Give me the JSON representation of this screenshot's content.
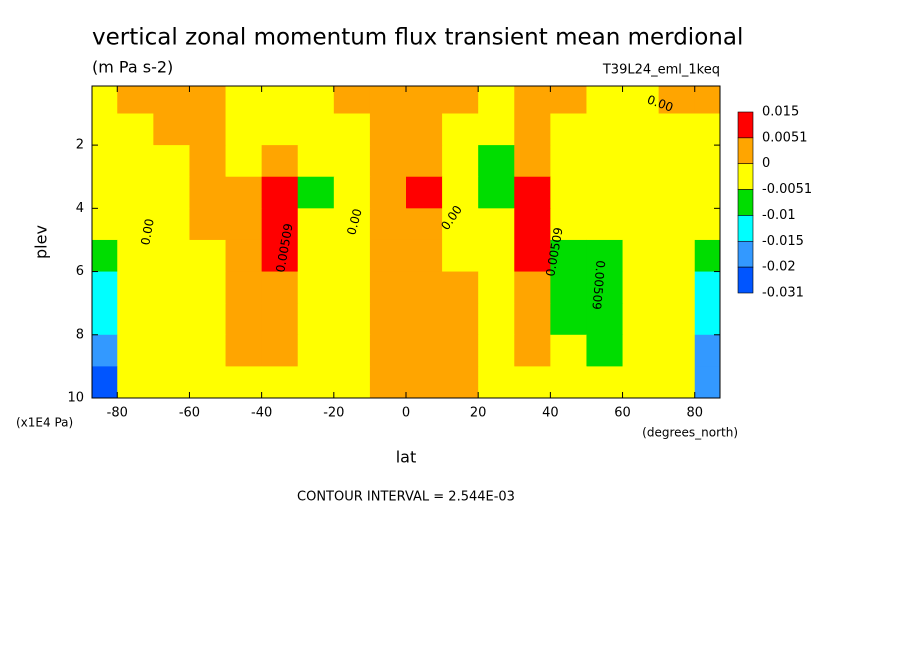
{
  "chart_data": {
    "type": "contour",
    "title": "vertical zonal momentum flux transient mean merdional",
    "subtitle": "(m Pa s-2)",
    "run_label": "T39L24_eml_1keq",
    "x_label": "lat",
    "x_units": "(degrees_north)",
    "y_label": "plev",
    "y_units": "(x1E4 Pa)",
    "footer": "CONTOUR INTERVAL = 2.544E-03",
    "x": [
      -85,
      -75,
      -65,
      -55,
      -45,
      -35,
      -25,
      -15,
      -5,
      5,
      15,
      25,
      35,
      45,
      55,
      65,
      75,
      85
    ],
    "y": [
      0.5,
      1.5,
      2.5,
      3.5,
      4.5,
      5.5,
      6.5,
      7.5,
      8.5,
      9.5
    ],
    "z": [
      [
        -0.002,
        0.003,
        0.003,
        0.003,
        -0.002,
        -0.002,
        -0.002,
        0.003,
        0.003,
        0.003,
        0.003,
        -0.002,
        0.003,
        0.003,
        -0.002,
        -0.002,
        0.003,
        0.003
      ],
      [
        -0.002,
        -0.002,
        0.003,
        0.003,
        -0.002,
        -0.002,
        -0.002,
        -0.002,
        0.003,
        0.003,
        -0.002,
        -0.002,
        0.003,
        -0.002,
        -0.002,
        -0.002,
        -0.002,
        -0.002
      ],
      [
        -0.002,
        -0.002,
        -0.002,
        0.003,
        -0.002,
        0.003,
        -0.002,
        -0.002,
        0.003,
        0.003,
        -0.002,
        -0.007,
        0.003,
        -0.002,
        -0.002,
        -0.002,
        -0.002,
        -0.002
      ],
      [
        -0.002,
        -0.002,
        -0.002,
        0.003,
        0.003,
        0.01,
        -0.007,
        -0.002,
        0.003,
        0.01,
        -0.002,
        -0.007,
        0.01,
        -0.002,
        -0.002,
        -0.002,
        -0.002,
        -0.002
      ],
      [
        -0.002,
        -0.002,
        -0.002,
        0.003,
        0.003,
        0.01,
        -0.002,
        -0.002,
        0.003,
        0.003,
        -0.002,
        -0.002,
        0.01,
        -0.002,
        -0.002,
        -0.002,
        -0.002,
        -0.002
      ],
      [
        -0.007,
        -0.002,
        -0.002,
        -0.002,
        0.003,
        0.01,
        -0.002,
        -0.002,
        0.003,
        0.003,
        -0.002,
        -0.002,
        0.01,
        -0.007,
        -0.007,
        -0.002,
        -0.002,
        -0.007
      ],
      [
        -0.012,
        -0.002,
        -0.002,
        -0.002,
        0.003,
        0.003,
        -0.002,
        -0.002,
        0.003,
        0.003,
        0.003,
        -0.002,
        0.003,
        -0.007,
        -0.007,
        -0.002,
        -0.002,
        -0.012
      ],
      [
        -0.012,
        -0.002,
        -0.002,
        -0.002,
        0.003,
        0.003,
        -0.002,
        -0.002,
        0.003,
        0.003,
        0.003,
        -0.002,
        0.003,
        -0.007,
        -0.007,
        -0.002,
        -0.002,
        -0.012
      ],
      [
        -0.018,
        -0.002,
        -0.002,
        -0.002,
        0.003,
        0.003,
        -0.002,
        -0.002,
        0.003,
        0.003,
        0.003,
        -0.002,
        0.003,
        -0.002,
        -0.007,
        -0.002,
        -0.002,
        -0.018
      ],
      [
        -0.025,
        -0.002,
        -0.002,
        -0.002,
        -0.002,
        -0.002,
        -0.002,
        -0.002,
        0.003,
        0.003,
        0.003,
        -0.002,
        -0.002,
        -0.002,
        -0.002,
        -0.002,
        -0.002,
        -0.018
      ]
    ],
    "levels": [
      0.015,
      0.0051,
      0,
      -0.0051,
      -0.01,
      -0.015,
      -0.02,
      -0.031
    ],
    "colors": [
      "#ff0000",
      "#ffa500",
      "#ffff00",
      "#00dd00",
      "#00ffff",
      "#3399ff",
      "#0055ff"
    ],
    "contour_labels": [
      {
        "value": 0,
        "label": "0.00"
      },
      {
        "value": 0.00509,
        "label": "0.00509"
      }
    ],
    "xlim": [
      -87,
      87
    ],
    "ylim": [
      10,
      0.13
    ],
    "xticks": [
      -80,
      -60,
      -40,
      -20,
      0,
      20,
      40,
      60,
      80
    ],
    "yticks": [
      2,
      4,
      6,
      8,
      10
    ]
  }
}
